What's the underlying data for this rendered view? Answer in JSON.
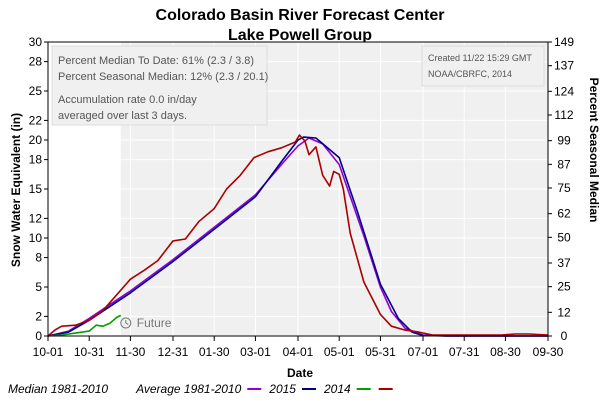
{
  "chart_data": {
    "type": "line",
    "title": "Colorado Basin River Forecast Center",
    "subtitle": "Lake Powell Group",
    "xlabel": "Date",
    "ylabel_left": "Snow Water Equivalent (in)",
    "ylabel_right": "Percent Seasonal Median",
    "x_tick_labels": [
      "10-01",
      "10-31",
      "11-30",
      "12-31",
      "01-30",
      "03-01",
      "04-01",
      "05-01",
      "05-31",
      "07-01",
      "07-31",
      "08-30",
      "09-30"
    ],
    "x_tick_days": [
      0,
      30,
      60,
      91,
      121,
      151,
      182,
      212,
      242,
      273,
      303,
      333,
      364
    ],
    "y_left_ticks": [
      0,
      2,
      5,
      8,
      10,
      12,
      15,
      18,
      20,
      22,
      25,
      28,
      30
    ],
    "y_right_ticks": [
      0,
      12,
      25,
      37,
      50,
      62,
      75,
      87,
      99,
      112,
      124,
      137,
      149
    ],
    "ylim": [
      0,
      30
    ],
    "y_right_lim": [
      0,
      149
    ],
    "grid": true,
    "legend_position": "bottom",
    "info_box": {
      "line1": "Percent Median To Date: 61% (2.3 / 3.8)",
      "line2": "Percent Seasonal Median: 12% (2.3 / 20.1)",
      "line3": "Accumulation rate 0.0 in/day",
      "line4": "averaged over last 3 days."
    },
    "created_box": {
      "line1": "Created 11/22 15:29 GMT",
      "line2": "NOAA/CBRFC, 2014"
    },
    "future_label": "Future",
    "future_start_day": 53,
    "series": [
      {
        "name": "Median 1981-2010",
        "color": "#ffffff",
        "x": [
          0,
          364
        ],
        "y": [
          0,
          0
        ]
      },
      {
        "name": "Average 1981-2010",
        "color": "#9400d3",
        "x": [
          0,
          15,
          30,
          45,
          60,
          91,
          121,
          151,
          170,
          182,
          190,
          200,
          212,
          230,
          242,
          250,
          260,
          273,
          290,
          310,
          330,
          364
        ],
        "y": [
          0,
          0.5,
          1.8,
          3.2,
          4.6,
          7.8,
          11.1,
          14.4,
          17.5,
          19.4,
          20.2,
          19.6,
          17.5,
          10.2,
          5.0,
          2.5,
          0.8,
          0.1,
          0,
          0,
          0,
          0
        ]
      },
      {
        "name": "2015",
        "color": "#00008b",
        "x": [
          0,
          15,
          30,
          45,
          60,
          91,
          121,
          151,
          170,
          182,
          186,
          195,
          212,
          225,
          242,
          255,
          265,
          273,
          290,
          310,
          330,
          364
        ],
        "y": [
          0,
          0.4,
          1.6,
          3.0,
          4.4,
          7.6,
          10.9,
          14.2,
          17.8,
          20.0,
          20.3,
          20.2,
          18.2,
          12.8,
          5.3,
          1.8,
          0.4,
          0.05,
          0,
          0,
          0,
          0
        ]
      },
      {
        "name": "2014",
        "color": "#00a000",
        "x": [
          0,
          10,
          20,
          30,
          35,
          40,
          45,
          50,
          53
        ],
        "y": [
          0,
          0.1,
          0.3,
          0.5,
          1.1,
          1.0,
          1.3,
          1.9,
          2.1
        ]
      },
      {
        "name": "",
        "color": "#aa0000",
        "x": [
          0,
          5,
          10,
          20,
          30,
          40,
          50,
          60,
          70,
          80,
          91,
          100,
          110,
          121,
          130,
          140,
          150,
          160,
          170,
          180,
          183,
          187,
          190,
          195,
          200,
          205,
          208,
          212,
          215,
          220,
          230,
          242,
          250,
          260,
          270,
          280,
          290,
          300,
          310,
          320,
          330,
          340,
          350,
          364
        ],
        "y": [
          0,
          0.6,
          1.0,
          1.1,
          1.6,
          2.6,
          4.2,
          5.8,
          6.7,
          7.7,
          9.7,
          9.9,
          11.7,
          13.0,
          15.0,
          16.4,
          18.2,
          18.8,
          19.2,
          19.8,
          20.5,
          19.9,
          18.5,
          19.3,
          16.4,
          15.3,
          16.8,
          16.5,
          15.0,
          10.5,
          5.5,
          2.2,
          1.0,
          0.6,
          0.4,
          0.1,
          0.1,
          0.1,
          0.1,
          0.1,
          0.1,
          0.2,
          0.2,
          0.1
        ]
      }
    ]
  },
  "legend": {
    "items": [
      {
        "label": "Median 1981-2010",
        "color": "#ffffff"
      },
      {
        "label": "Average 1981-2010",
        "color": "#9400d3"
      },
      {
        "label": "2015",
        "color": "#00008b"
      },
      {
        "label": "2014",
        "color": "#00a000"
      },
      {
        "label": "",
        "color": "#aa0000"
      }
    ]
  }
}
